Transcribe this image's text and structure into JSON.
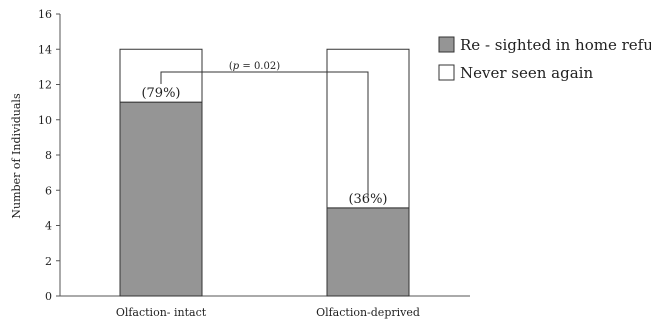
{
  "chart_data": {
    "type": "bar",
    "stacked": true,
    "categories": [
      "Olfaction- intact",
      "Olfaction-deprived"
    ],
    "series": [
      {
        "name": "Re - sighted in home refuge",
        "values": [
          11,
          5
        ],
        "color": "#959595"
      },
      {
        "name": "Never seen again",
        "values": [
          3,
          9
        ],
        "color": "#ffffff"
      }
    ],
    "ylabel": "Number of Individuals",
    "ylim": [
      0,
      16
    ],
    "yticks": [
      0,
      2,
      4,
      6,
      8,
      10,
      12,
      14,
      16
    ],
    "grid": false,
    "legend_position": "right",
    "annotations": {
      "percent_labels": [
        "(79%)",
        "(36%)"
      ],
      "p_prefix": "(",
      "p_symbol": "p",
      "p_suffix": " = 0.02)"
    }
  }
}
